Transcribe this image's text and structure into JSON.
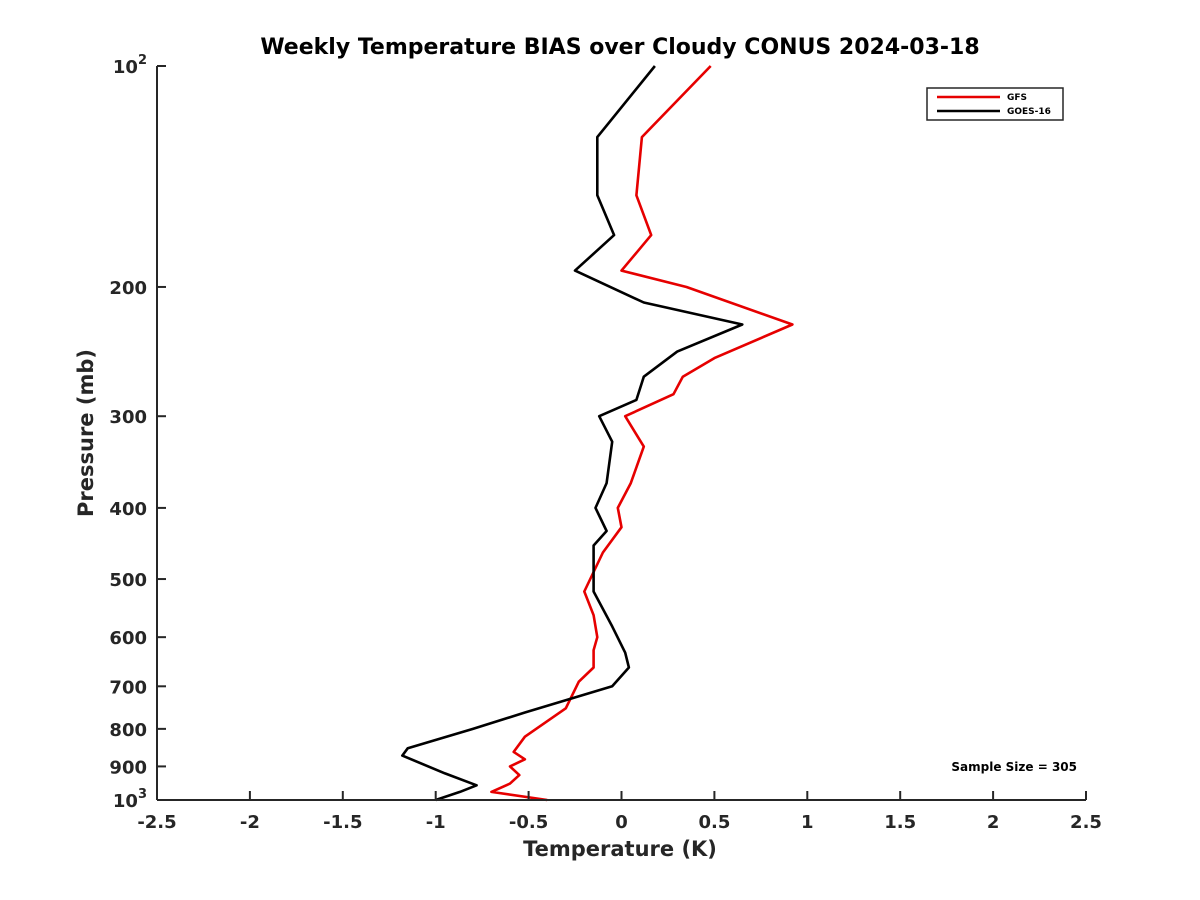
{
  "chart_data": {
    "type": "line",
    "title": "Weekly Temperature BIAS over Cloudy CONUS 2024-03-18",
    "xlabel": "Temperature (K)",
    "ylabel": "Pressure (mb)",
    "xlim": [
      -2.5,
      2.5
    ],
    "ylim": [
      100,
      1000
    ],
    "yscale": "log",
    "y_reversed": true,
    "grid": false,
    "legend_position": "top-right",
    "x_ticks": [
      -2.5,
      -2,
      -1.5,
      -1,
      -0.5,
      0,
      0.5,
      1,
      1.5,
      2,
      2.5
    ],
    "x_tick_labels": [
      "-2.5",
      "-2",
      "-1.5",
      "-1",
      "-0.5",
      "0",
      "0.5",
      "1",
      "1.5",
      "2",
      "2.5"
    ],
    "y_ticks": [
      100,
      200,
      300,
      400,
      500,
      600,
      700,
      800,
      900,
      1000
    ],
    "y_tick_labels": [
      {
        "value": 100,
        "base": "10",
        "exp": "2"
      },
      {
        "value": 200,
        "base": "200",
        "exp": ""
      },
      {
        "value": 300,
        "base": "300",
        "exp": ""
      },
      {
        "value": 400,
        "base": "400",
        "exp": ""
      },
      {
        "value": 500,
        "base": "500",
        "exp": ""
      },
      {
        "value": 600,
        "base": "600",
        "exp": ""
      },
      {
        "value": 700,
        "base": "700",
        "exp": ""
      },
      {
        "value": 800,
        "base": "800",
        "exp": ""
      },
      {
        "value": 900,
        "base": "900",
        "exp": ""
      },
      {
        "value": 1000,
        "base": "10",
        "exp": "3"
      }
    ],
    "annotation": "Sample Size = 305",
    "series": [
      {
        "name": "GFS",
        "color": "#e60000",
        "points": [
          {
            "x": 0.48,
            "p": 100
          },
          {
            "x": 0.11,
            "p": 125
          },
          {
            "x": 0.08,
            "p": 150
          },
          {
            "x": 0.16,
            "p": 170
          },
          {
            "x": 0.0,
            "p": 190
          },
          {
            "x": 0.35,
            "p": 200
          },
          {
            "x": 0.92,
            "p": 225
          },
          {
            "x": 0.5,
            "p": 250
          },
          {
            "x": 0.33,
            "p": 265
          },
          {
            "x": 0.28,
            "p": 280
          },
          {
            "x": 0.02,
            "p": 300
          },
          {
            "x": 0.12,
            "p": 330
          },
          {
            "x": 0.05,
            "p": 370
          },
          {
            "x": -0.02,
            "p": 400
          },
          {
            "x": 0.0,
            "p": 425
          },
          {
            "x": -0.1,
            "p": 460
          },
          {
            "x": -0.2,
            "p": 520
          },
          {
            "x": -0.15,
            "p": 560
          },
          {
            "x": -0.13,
            "p": 600
          },
          {
            "x": -0.15,
            "p": 625
          },
          {
            "x": -0.15,
            "p": 660
          },
          {
            "x": -0.23,
            "p": 690
          },
          {
            "x": -0.3,
            "p": 750
          },
          {
            "x": -0.52,
            "p": 820
          },
          {
            "x": -0.58,
            "p": 860
          },
          {
            "x": -0.52,
            "p": 880
          },
          {
            "x": -0.6,
            "p": 900
          },
          {
            "x": -0.55,
            "p": 925
          },
          {
            "x": -0.6,
            "p": 950
          },
          {
            "x": -0.7,
            "p": 975
          },
          {
            "x": -0.4,
            "p": 1000
          }
        ]
      },
      {
        "name": "GOES-16",
        "color": "#000000",
        "points": [
          {
            "x": 0.18,
            "p": 100
          },
          {
            "x": -0.13,
            "p": 125
          },
          {
            "x": -0.13,
            "p": 150
          },
          {
            "x": -0.04,
            "p": 170
          },
          {
            "x": -0.25,
            "p": 190
          },
          {
            "x": 0.12,
            "p": 210
          },
          {
            "x": 0.65,
            "p": 225
          },
          {
            "x": 0.3,
            "p": 245
          },
          {
            "x": 0.12,
            "p": 265
          },
          {
            "x": 0.08,
            "p": 285
          },
          {
            "x": -0.12,
            "p": 300
          },
          {
            "x": -0.05,
            "p": 325
          },
          {
            "x": -0.08,
            "p": 370
          },
          {
            "x": -0.14,
            "p": 400
          },
          {
            "x": -0.08,
            "p": 430
          },
          {
            "x": -0.15,
            "p": 450
          },
          {
            "x": -0.15,
            "p": 520
          },
          {
            "x": -0.05,
            "p": 580
          },
          {
            "x": 0.02,
            "p": 630
          },
          {
            "x": 0.04,
            "p": 660
          },
          {
            "x": -0.05,
            "p": 700
          },
          {
            "x": -0.52,
            "p": 760
          },
          {
            "x": -0.8,
            "p": 800
          },
          {
            "x": -1.15,
            "p": 850
          },
          {
            "x": -1.18,
            "p": 870
          },
          {
            "x": -0.95,
            "p": 920
          },
          {
            "x": -0.78,
            "p": 955
          },
          {
            "x": -0.87,
            "p": 975
          },
          {
            "x": -1.0,
            "p": 1000
          }
        ]
      }
    ]
  }
}
